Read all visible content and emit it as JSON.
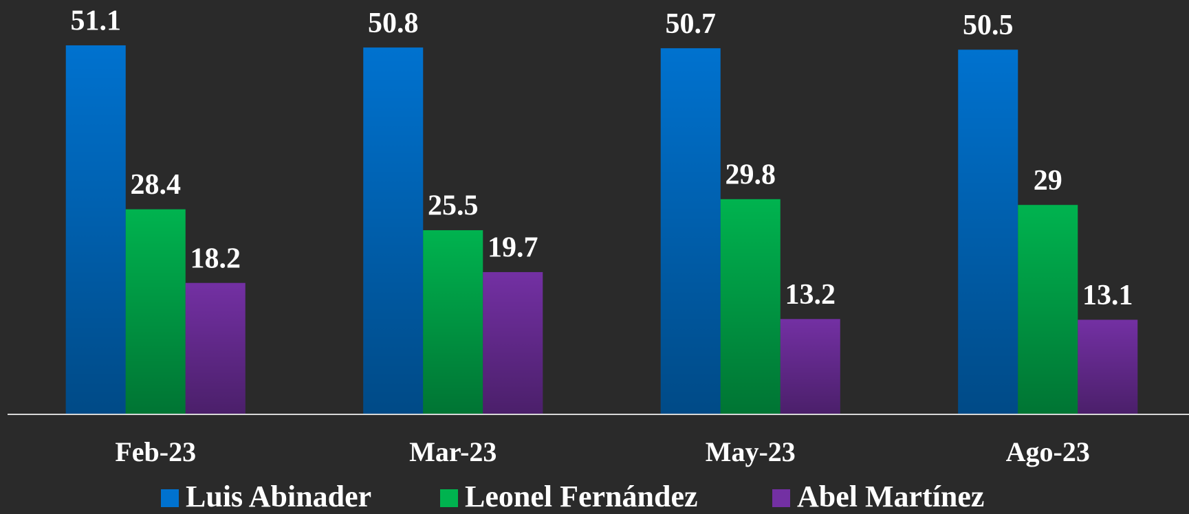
{
  "chart_data": {
    "type": "bar",
    "categories": [
      "Feb-23",
      "Mar-23",
      "May-23",
      "Ago-23"
    ],
    "series": [
      {
        "name": "Luis Abinader",
        "color": "#0072cf",
        "values": [
          51.1,
          50.8,
          50.7,
          50.5
        ]
      },
      {
        "name": "Leonel Fernández",
        "color": "#00b34f",
        "values": [
          28.4,
          25.5,
          29.8,
          29
        ]
      },
      {
        "name": "Abel Martínez",
        "color": "#7330a3",
        "values": [
          18.2,
          19.7,
          13.2,
          13.1
        ]
      }
    ],
    "ylim": [
      0,
      55
    ]
  }
}
